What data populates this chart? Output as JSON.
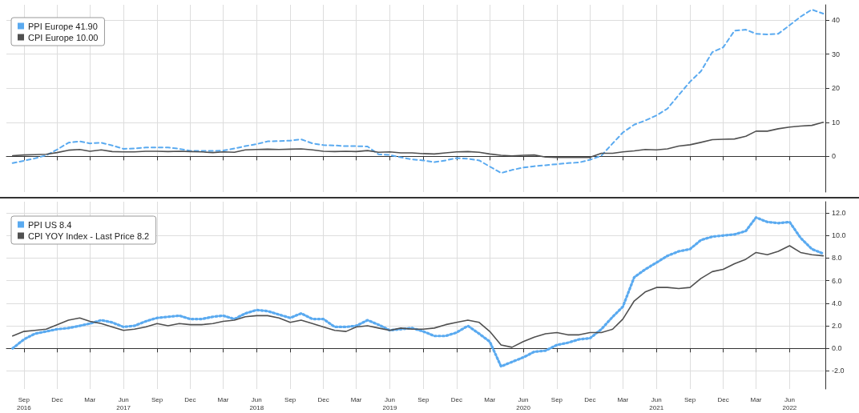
{
  "chart_data": [
    {
      "type": "line",
      "legend": "top left",
      "grid": true,
      "tick_labels": "y",
      "xlim": [
        "2016-07-15",
        "2022-09-07"
      ],
      "xticks": [
        {
          "value": "2016-09",
          "label": null
        },
        {
          "value": "2016-12",
          "label": null
        },
        {
          "value": "2017-03",
          "label": null
        },
        {
          "value": "2017-06",
          "label": null
        },
        {
          "value": "2017-09",
          "label": null
        },
        {
          "value": "2017-12",
          "label": null
        },
        {
          "value": "2018-03",
          "label": null
        },
        {
          "value": "2018-06",
          "label": null
        },
        {
          "value": "2018-09",
          "label": null
        },
        {
          "value": "2018-12",
          "label": null
        },
        {
          "value": "2019-03",
          "label": null
        },
        {
          "value": "2019-06",
          "label": null
        },
        {
          "value": "2019-09",
          "label": null
        },
        {
          "value": "2019-12",
          "label": null
        },
        {
          "value": "2020-03",
          "label": null
        },
        {
          "value": "2020-06",
          "label": null
        },
        {
          "value": "2020-09",
          "label": null
        },
        {
          "value": "2020-12",
          "label": null
        },
        {
          "value": "2021-03",
          "label": null
        },
        {
          "value": "2021-06",
          "label": null
        },
        {
          "value": "2021-09",
          "label": null
        },
        {
          "value": "2021-12",
          "label": null
        },
        {
          "value": "2022-03",
          "label": null
        },
        {
          "value": "2022-06",
          "label": null
        }
      ],
      "ylim": [
        -10.5,
        44.5
      ],
      "yticks": [
        0,
        10,
        20,
        30,
        40
      ],
      "x": [
        "2016-08",
        "2016-09",
        "2016-10",
        "2016-11",
        "2016-12",
        "2017-01",
        "2017-02",
        "2017-03",
        "2017-04",
        "2017-05",
        "2017-06",
        "2017-07",
        "2017-08",
        "2017-09",
        "2017-10",
        "2017-11",
        "2017-12",
        "2018-01",
        "2018-02",
        "2018-03",
        "2018-04",
        "2018-05",
        "2018-06",
        "2018-07",
        "2018-08",
        "2018-09",
        "2018-10",
        "2018-11",
        "2018-12",
        "2019-01",
        "2019-02",
        "2019-03",
        "2019-04",
        "2019-05",
        "2019-06",
        "2019-07",
        "2019-08",
        "2019-09",
        "2019-10",
        "2019-11",
        "2019-12",
        "2020-01",
        "2020-02",
        "2020-03",
        "2020-04",
        "2020-05",
        "2020-06",
        "2020-07",
        "2020-08",
        "2020-09",
        "2020-10",
        "2020-11",
        "2020-12",
        "2021-01",
        "2021-02",
        "2021-03",
        "2021-04",
        "2021-05",
        "2021-06",
        "2021-07",
        "2021-08",
        "2021-09",
        "2021-10",
        "2021-11",
        "2021-12",
        "2022-01",
        "2022-02",
        "2022-03",
        "2022-04",
        "2022-05",
        "2022-06",
        "2022-07",
        "2022-08",
        "2022-09"
      ],
      "series": [
        {
          "name": "PPI Europe 41.90",
          "color": "#5aaaf0",
          "line_style": "dashed",
          "values": [
            -2.0,
            -1.3,
            -0.6,
            0.3,
            2.0,
            4.0,
            4.4,
            3.8,
            4.0,
            3.2,
            2.2,
            2.3,
            2.6,
            2.6,
            2.6,
            2.2,
            1.6,
            1.6,
            1.6,
            1.7,
            2.3,
            3.0,
            3.6,
            4.4,
            4.5,
            4.6,
            5.0,
            3.8,
            3.3,
            3.2,
            3.0,
            3.0,
            2.9,
            0.6,
            0.4,
            -0.3,
            -0.9,
            -1.2,
            -1.7,
            -1.2,
            -0.5,
            -0.7,
            -1.2,
            -3.0,
            -4.9,
            -4.0,
            -3.3,
            -2.9,
            -2.6,
            -2.3,
            -2.0,
            -1.8,
            -1.0,
            0.2,
            3.8,
            7.0,
            9.3,
            10.5,
            12.0,
            14.0,
            18.0,
            21.9,
            25.0,
            30.6,
            32.0,
            36.9,
            37.2,
            36.0,
            35.8,
            36.0,
            38.5,
            41.0,
            43.1,
            41.9
          ]
        },
        {
          "name": "CPI Europe 10.00",
          "color": "#505050",
          "line_style": "solid",
          "values": [
            0.2,
            0.4,
            0.5,
            0.6,
            1.1,
            1.8,
            2.0,
            1.5,
            1.9,
            1.4,
            1.3,
            1.3,
            1.5,
            1.5,
            1.4,
            1.5,
            1.4,
            1.3,
            1.1,
            1.3,
            1.2,
            1.9,
            2.0,
            2.1,
            2.0,
            2.1,
            2.2,
            1.9,
            1.5,
            1.4,
            1.5,
            1.4,
            1.7,
            1.2,
            1.3,
            1.0,
            1.0,
            0.8,
            0.7,
            1.0,
            1.3,
            1.4,
            1.2,
            0.7,
            0.3,
            0.1,
            0.3,
            0.4,
            -0.2,
            -0.3,
            -0.3,
            -0.3,
            -0.3,
            0.9,
            0.9,
            1.3,
            1.6,
            2.0,
            1.9,
            2.2,
            3.0,
            3.4,
            4.1,
            4.9,
            5.0,
            5.1,
            5.9,
            7.4,
            7.4,
            8.1,
            8.6,
            8.9,
            9.1,
            10.0
          ]
        }
      ]
    },
    {
      "type": "line",
      "legend": "top left",
      "grid": true,
      "xlim": [
        "2016-07-15",
        "2022-09-07"
      ],
      "xticks": [
        {
          "value": "2016-09",
          "label": "Sep\n2016"
        },
        {
          "value": "2016-12",
          "label": "Dec"
        },
        {
          "value": "2017-03",
          "label": "Mar"
        },
        {
          "value": "2017-06",
          "label": "Jun\n2017"
        },
        {
          "value": "2017-09",
          "label": "Sep"
        },
        {
          "value": "2017-12",
          "label": "Dec"
        },
        {
          "value": "2018-03",
          "label": "Mar"
        },
        {
          "value": "2018-06",
          "label": "Jun\n2018"
        },
        {
          "value": "2018-09",
          "label": "Sep"
        },
        {
          "value": "2018-12",
          "label": "Dec"
        },
        {
          "value": "2019-03",
          "label": "Mar"
        },
        {
          "value": "2019-06",
          "label": "Jun\n2019"
        },
        {
          "value": "2019-09",
          "label": "Sep"
        },
        {
          "value": "2019-12",
          "label": "Dec"
        },
        {
          "value": "2020-03",
          "label": "Mar"
        },
        {
          "value": "2020-06",
          "label": "Jun\n2020"
        },
        {
          "value": "2020-09",
          "label": "Sep"
        },
        {
          "value": "2020-12",
          "label": "Dec"
        },
        {
          "value": "2021-03",
          "label": "Mar"
        },
        {
          "value": "2021-06",
          "label": "Jun\n2021"
        },
        {
          "value": "2021-09",
          "label": "Sep"
        },
        {
          "value": "2021-12",
          "label": "Dec"
        },
        {
          "value": "2022-03",
          "label": "Mar"
        },
        {
          "value": "2022-06",
          "label": "Jun\n2022"
        }
      ],
      "ylim": [
        -3.6,
        13
      ],
      "yticks": [
        {
          "value": -2,
          "label": "-2.0"
        },
        {
          "value": 0,
          "label": "0.0"
        },
        {
          "value": 2,
          "label": "2.0"
        },
        {
          "value": 4,
          "label": "4.0"
        },
        {
          "value": 6,
          "label": "6.0"
        },
        {
          "value": 8,
          "label": "8.0"
        },
        {
          "value": 10,
          "label": "10.0"
        },
        {
          "value": 12,
          "label": "12.0"
        }
      ],
      "x": [
        "2016-08",
        "2016-09",
        "2016-10",
        "2016-11",
        "2016-12",
        "2017-01",
        "2017-02",
        "2017-03",
        "2017-04",
        "2017-05",
        "2017-06",
        "2017-07",
        "2017-08",
        "2017-09",
        "2017-10",
        "2017-11",
        "2017-12",
        "2018-01",
        "2018-02",
        "2018-03",
        "2018-04",
        "2018-05",
        "2018-06",
        "2018-07",
        "2018-08",
        "2018-09",
        "2018-10",
        "2018-11",
        "2018-12",
        "2019-01",
        "2019-02",
        "2019-03",
        "2019-04",
        "2019-05",
        "2019-06",
        "2019-07",
        "2019-08",
        "2019-09",
        "2019-10",
        "2019-11",
        "2019-12",
        "2020-01",
        "2020-02",
        "2020-03",
        "2020-04",
        "2020-05",
        "2020-06",
        "2020-07",
        "2020-08",
        "2020-09",
        "2020-10",
        "2020-11",
        "2020-12",
        "2021-01",
        "2021-02",
        "2021-03",
        "2021-04",
        "2021-05",
        "2021-06",
        "2021-07",
        "2021-08",
        "2021-09",
        "2021-10",
        "2021-11",
        "2021-12",
        "2022-01",
        "2022-02",
        "2022-03",
        "2022-04",
        "2022-05",
        "2022-06",
        "2022-07",
        "2022-08",
        "2022-09"
      ],
      "series": [
        {
          "name": "PPI US 8.4",
          "color": "#5aaaf0",
          "line_style": "dotted",
          "values": [
            0.0,
            0.8,
            1.3,
            1.5,
            1.7,
            1.8,
            2.0,
            2.2,
            2.5,
            2.3,
            1.9,
            2.0,
            2.4,
            2.7,
            2.8,
            2.9,
            2.6,
            2.6,
            2.8,
            2.9,
            2.6,
            3.1,
            3.4,
            3.3,
            3.0,
            2.7,
            3.1,
            2.6,
            2.6,
            1.9,
            1.9,
            2.0,
            2.5,
            2.1,
            1.6,
            1.7,
            1.8,
            1.5,
            1.1,
            1.1,
            1.4,
            2.0,
            1.3,
            0.6,
            -1.6,
            -1.2,
            -0.8,
            -0.3,
            -0.2,
            0.3,
            0.5,
            0.8,
            0.9,
            1.7,
            2.8,
            3.7,
            6.3,
            7.0,
            7.6,
            8.2,
            8.6,
            8.8,
            9.6,
            9.9,
            10.0,
            10.1,
            10.4,
            11.6,
            11.2,
            11.1,
            11.2,
            9.8,
            8.8,
            8.4
          ]
        },
        {
          "name": "CPI YOY Index - Last Price 8.2",
          "color": "#505050",
          "line_style": "solid",
          "values": [
            1.1,
            1.5,
            1.6,
            1.7,
            2.1,
            2.5,
            2.7,
            2.4,
            2.2,
            1.9,
            1.6,
            1.7,
            1.9,
            2.2,
            2.0,
            2.2,
            2.1,
            2.1,
            2.2,
            2.4,
            2.5,
            2.8,
            2.9,
            2.9,
            2.7,
            2.3,
            2.5,
            2.2,
            1.9,
            1.6,
            1.5,
            1.9,
            2.0,
            1.8,
            1.6,
            1.8,
            1.7,
            1.7,
            1.8,
            2.1,
            2.3,
            2.5,
            2.3,
            1.5,
            0.3,
            0.1,
            0.6,
            1.0,
            1.3,
            1.4,
            1.2,
            1.2,
            1.4,
            1.4,
            1.7,
            2.6,
            4.2,
            5.0,
            5.4,
            5.4,
            5.3,
            5.4,
            6.2,
            6.8,
            7.0,
            7.5,
            7.9,
            8.5,
            8.3,
            8.6,
            9.1,
            8.5,
            8.3,
            8.2
          ]
        }
      ]
    }
  ]
}
